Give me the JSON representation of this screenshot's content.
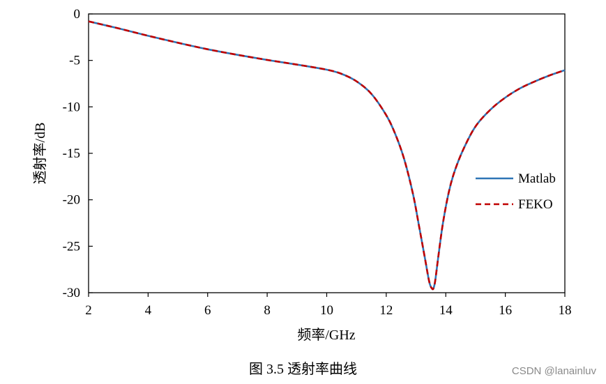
{
  "chart_data": {
    "type": "line",
    "xlabel": "频率/GHz",
    "ylabel": "透射率/dB",
    "xlim": [
      2,
      18
    ],
    "ylim": [
      -30,
      0
    ],
    "x_ticks": [
      2,
      4,
      6,
      8,
      10,
      12,
      14,
      16,
      18
    ],
    "y_ticks": [
      0,
      -5,
      -10,
      -15,
      -20,
      -25,
      -30
    ],
    "grid": false,
    "legend_position": "right",
    "series": [
      {
        "name": "Matlab",
        "color": "#2E75B6",
        "style": "solid",
        "x": [
          2,
          3,
          4,
          5,
          6,
          7,
          8,
          9,
          10,
          10.5,
          11,
          11.5,
          12,
          12.3,
          12.6,
          12.9,
          13.1,
          13.3,
          13.45,
          13.55,
          13.6,
          13.65,
          13.75,
          13.9,
          14.1,
          14.3,
          14.6,
          15,
          15.5,
          16,
          16.5,
          17,
          17.5,
          18
        ],
        "y": [
          -0.8,
          -1.55,
          -2.35,
          -3.1,
          -3.8,
          -4.4,
          -4.95,
          -5.45,
          -6.0,
          -6.45,
          -7.25,
          -8.6,
          -10.9,
          -12.9,
          -15.6,
          -19.4,
          -22.8,
          -26.3,
          -28.9,
          -29.6,
          -29.4,
          -28.6,
          -26.1,
          -22.6,
          -19.2,
          -16.9,
          -14.5,
          -12.1,
          -10.3,
          -9.0,
          -8.0,
          -7.25,
          -6.6,
          -6.05
        ]
      },
      {
        "name": "FEKO",
        "color": "#C00000",
        "style": "dashed",
        "x": [
          2,
          3,
          4,
          5,
          6,
          7,
          8,
          9,
          10,
          10.5,
          11,
          11.5,
          12,
          12.3,
          12.6,
          12.9,
          13.1,
          13.3,
          13.45,
          13.55,
          13.6,
          13.65,
          13.75,
          13.9,
          14.1,
          14.3,
          14.6,
          15,
          15.5,
          16,
          16.5,
          17,
          17.5,
          18
        ],
        "y": [
          -0.8,
          -1.55,
          -2.35,
          -3.1,
          -3.8,
          -4.4,
          -4.95,
          -5.45,
          -6.0,
          -6.45,
          -7.25,
          -8.6,
          -10.9,
          -12.9,
          -15.6,
          -19.4,
          -22.8,
          -26.3,
          -28.9,
          -29.6,
          -29.4,
          -28.6,
          -26.1,
          -22.6,
          -19.2,
          -16.9,
          -14.5,
          -12.1,
          -10.3,
          -9.0,
          -8.0,
          -7.25,
          -6.6,
          -6.05
        ]
      }
    ]
  },
  "caption": "图 3.5  透射率曲线",
  "watermark": "CSDN @lanainluv"
}
